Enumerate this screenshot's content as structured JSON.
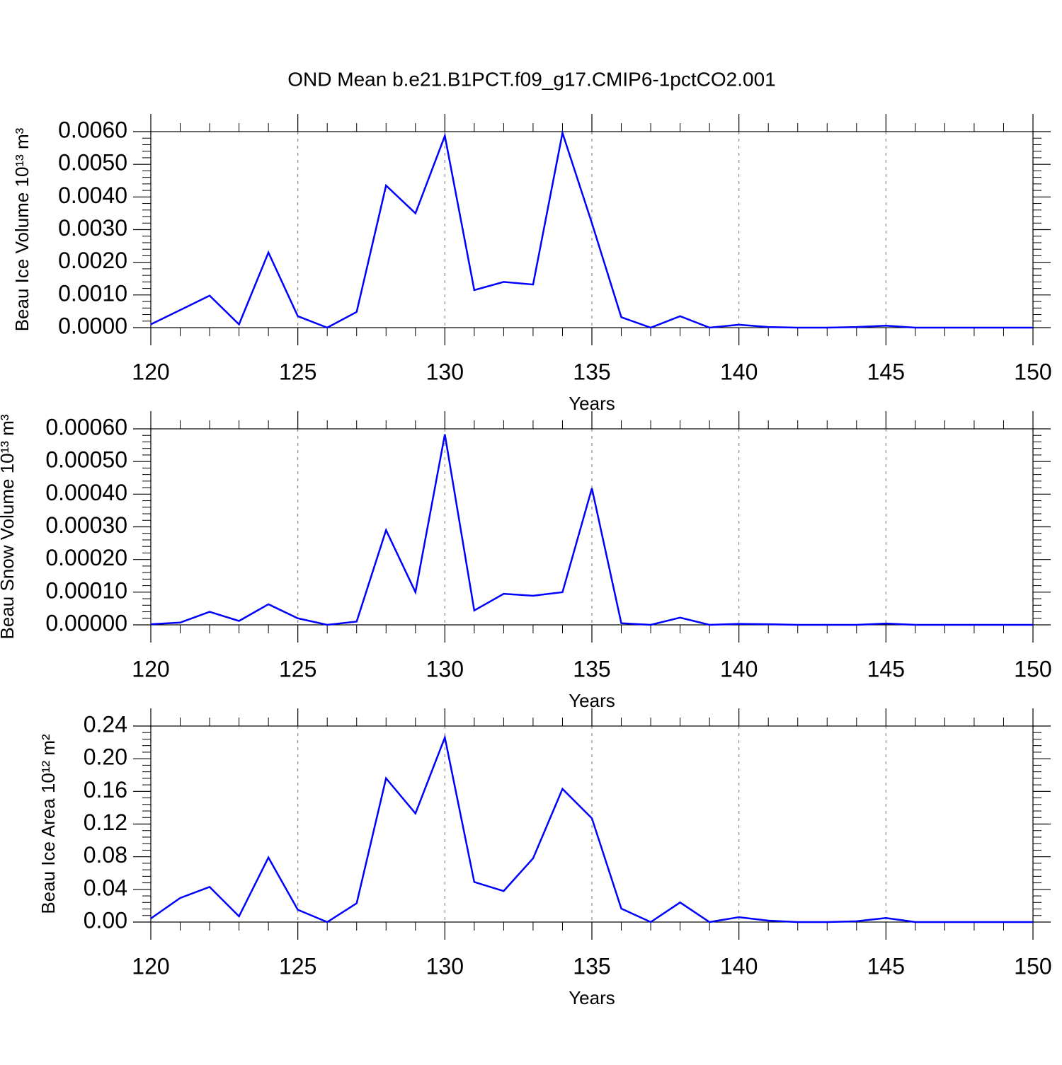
{
  "chart_data": [
    {
      "type": "line",
      "title": "OND Mean b.e21.B1PCT.f09_g17.CMIP6-1pctCO2.001",
      "xlabel": "Years",
      "ylabel": "Beau Ice Volume 10¹³ m³",
      "x": [
        120,
        121,
        122,
        123,
        124,
        125,
        126,
        127,
        128,
        129,
        130,
        131,
        132,
        133,
        134,
        135,
        136,
        137,
        138,
        139,
        140,
        141,
        142,
        143,
        144,
        145,
        146,
        147,
        148,
        149,
        150
      ],
      "values": [
        0.0001,
        0.00054,
        0.00098,
        0.0001,
        0.0023,
        0.00035,
        0,
        0.00048,
        0.00435,
        0.0035,
        0.00587,
        0.00115,
        0.0014,
        0.00132,
        0.00596,
        0.0032,
        0.00032,
        0,
        0.00035,
        0,
        9e-05,
        2e-05,
        0,
        0,
        2e-05,
        6e-05,
        0,
        0,
        0,
        0,
        0
      ],
      "color": "#0000ff",
      "xlim": [
        120,
        150
      ],
      "xticks": [
        120,
        125,
        130,
        135,
        140,
        145,
        150
      ],
      "ylim": [
        0,
        0.006
      ],
      "yticks": [
        {
          "value": 0,
          "label": "0.0000"
        },
        {
          "value": 0.001,
          "label": "0.0010"
        },
        {
          "value": 0.002,
          "label": "0.0020"
        },
        {
          "value": 0.003,
          "label": "0.0030"
        },
        {
          "value": 0.004,
          "label": "0.0040"
        },
        {
          "value": 0.005,
          "label": "0.0050"
        },
        {
          "value": 0.006,
          "label": "0.0060"
        }
      ],
      "grid": "x"
    },
    {
      "type": "line",
      "xlabel": "Years",
      "ylabel": "Beau Snow Volume 10¹³ m³",
      "x": [
        120,
        121,
        122,
        123,
        124,
        125,
        126,
        127,
        128,
        129,
        130,
        131,
        132,
        133,
        134,
        135,
        136,
        137,
        138,
        139,
        140,
        141,
        142,
        143,
        144,
        145,
        146,
        147,
        148,
        149,
        150
      ],
      "values": [
        2e-06,
        7e-06,
        4e-05,
        1.2e-05,
        6.3e-05,
        2e-05,
        0,
        1e-05,
        0.00029,
        0.0001,
        0.000583,
        4.4e-05,
        9.5e-05,
        8.9e-05,
        0.0001,
        0.000418,
        5e-06,
        0,
        2.2e-05,
        0,
        3e-06,
        2e-06,
        0,
        0,
        0,
        4e-06,
        0,
        0,
        0,
        0,
        0
      ],
      "color": "#0000ff",
      "xlim": [
        120,
        150
      ],
      "xticks": [
        120,
        125,
        130,
        135,
        140,
        145,
        150
      ],
      "ylim": [
        0,
        0.0006
      ],
      "yticks": [
        {
          "value": 0,
          "label": "0.00000"
        },
        {
          "value": 0.0001,
          "label": "0.00010"
        },
        {
          "value": 0.0002,
          "label": "0.00020"
        },
        {
          "value": 0.0003,
          "label": "0.00030"
        },
        {
          "value": 0.0004,
          "label": "0.00040"
        },
        {
          "value": 0.0005,
          "label": "0.00050"
        },
        {
          "value": 0.0006,
          "label": "0.00060"
        }
      ],
      "grid": "x"
    },
    {
      "type": "line",
      "xlabel": "Years",
      "ylabel": "Beau Ice Area 10¹² m²",
      "x": [
        120,
        121,
        122,
        123,
        124,
        125,
        126,
        127,
        128,
        129,
        130,
        131,
        132,
        133,
        134,
        135,
        136,
        137,
        138,
        139,
        140,
        141,
        142,
        143,
        144,
        145,
        146,
        147,
        148,
        149,
        150
      ],
      "values": [
        0.0043,
        0.0295,
        0.043,
        0.007,
        0.079,
        0.015,
        0,
        0.023,
        0.176,
        0.133,
        0.226,
        0.049,
        0.038,
        0.078,
        0.163,
        0.127,
        0.0165,
        0,
        0.024,
        0,
        0.006,
        0.0017,
        0,
        0,
        0.001,
        0.005,
        0,
        0,
        0,
        0,
        0
      ],
      "color": "#0000ff",
      "xlim": [
        120,
        150
      ],
      "xticks": [
        120,
        125,
        130,
        135,
        140,
        145,
        150
      ],
      "ylim": [
        0,
        0.24
      ],
      "yticks": [
        {
          "value": 0,
          "label": "0.00"
        },
        0.04,
        0.08,
        0.12,
        0.16,
        {
          "value": 0.2,
          "label": "0.20"
        },
        0.24
      ],
      "grid": "x"
    }
  ]
}
